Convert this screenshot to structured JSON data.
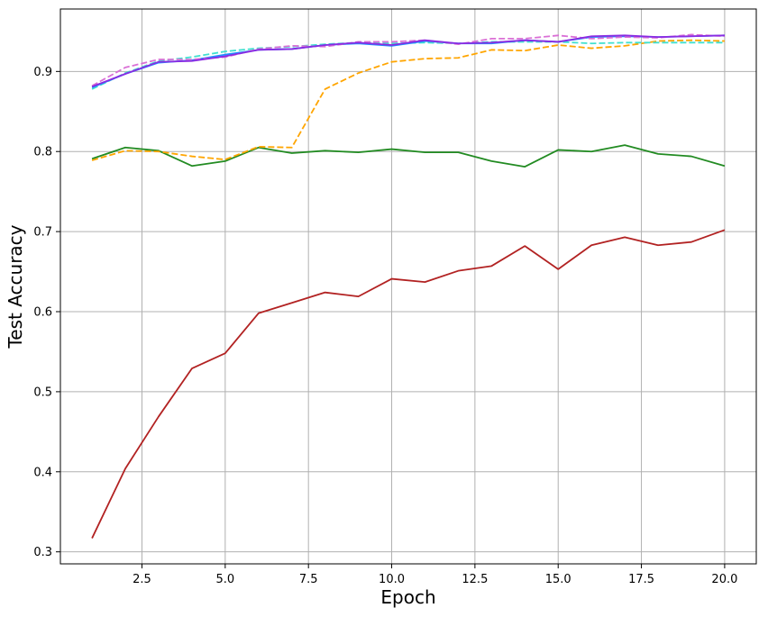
{
  "chart_data": {
    "type": "line",
    "title": "",
    "xlabel": "Epoch",
    "ylabel": "Test Accuracy",
    "xlim": [
      0.05,
      20.95
    ],
    "ylim": [
      0.285,
      0.978
    ],
    "grid": true,
    "xticks": [
      2.5,
      5.0,
      7.5,
      10.0,
      12.5,
      15.0,
      17.5,
      20.0
    ],
    "xtick_labels": [
      "2.5",
      "5.0",
      "7.5",
      "10.0",
      "12.5",
      "15.0",
      "17.5",
      "20.0"
    ],
    "yticks": [
      0.3,
      0.4,
      0.5,
      0.6,
      0.7,
      0.8,
      0.9
    ],
    "ytick_labels": [
      "0.3",
      "0.4",
      "0.5",
      "0.6",
      "0.7",
      "0.8",
      "0.9"
    ],
    "x": [
      1,
      2,
      3,
      4,
      5,
      6,
      7,
      8,
      9,
      10,
      11,
      12,
      13,
      14,
      15,
      16,
      17,
      18,
      19,
      20
    ],
    "series": [
      {
        "color": "#b22222",
        "dash": "solid",
        "values": [
          0.317,
          0.404,
          0.469,
          0.529,
          0.548,
          0.598,
          0.611,
          0.624,
          0.619,
          0.641,
          0.637,
          0.651,
          0.657,
          0.682,
          0.653,
          0.683,
          0.693,
          0.683,
          0.687,
          0.702
        ]
      },
      {
        "color": "#228b22",
        "dash": "solid",
        "values": [
          0.791,
          0.805,
          0.801,
          0.782,
          0.788,
          0.805,
          0.798,
          0.801,
          0.799,
          0.803,
          0.799,
          0.799,
          0.788,
          0.781,
          0.802,
          0.8,
          0.808,
          0.797,
          0.794,
          0.782
        ]
      },
      {
        "color": "#ffa500",
        "dash": "dashed",
        "values": [
          0.789,
          0.801,
          0.8,
          0.794,
          0.79,
          0.806,
          0.805,
          0.878,
          0.898,
          0.912,
          0.916,
          0.917,
          0.927,
          0.926,
          0.933,
          0.929,
          0.932,
          0.938,
          0.939,
          0.938
        ]
      },
      {
        "color": "#40e0d0",
        "dash": "dashed",
        "values": [
          0.878,
          0.898,
          0.913,
          0.918,
          0.925,
          0.929,
          0.931,
          0.934,
          0.936,
          0.935,
          0.936,
          0.935,
          0.937,
          0.937,
          0.937,
          0.935,
          0.936,
          0.936,
          0.936,
          0.936
        ]
      },
      {
        "color": "#1e90ff",
        "dash": "solid",
        "values": [
          0.88,
          0.897,
          0.911,
          0.914,
          0.921,
          0.927,
          0.928,
          0.933,
          0.935,
          0.932,
          0.938,
          0.935,
          0.935,
          0.939,
          0.937,
          0.943,
          0.944,
          0.943,
          0.944,
          0.945
        ]
      },
      {
        "color": "#da70d6",
        "dash": "dashed",
        "values": [
          0.882,
          0.905,
          0.915,
          0.915,
          0.918,
          0.928,
          0.932,
          0.931,
          0.937,
          0.937,
          0.939,
          0.934,
          0.941,
          0.941,
          0.945,
          0.941,
          0.943,
          0.942,
          0.946,
          0.944
        ]
      },
      {
        "color": "#8a2be2",
        "dash": "solid",
        "values": [
          0.881,
          0.897,
          0.912,
          0.913,
          0.919,
          0.927,
          0.928,
          0.933,
          0.936,
          0.933,
          0.939,
          0.935,
          0.936,
          0.939,
          0.937,
          0.944,
          0.945,
          0.943,
          0.944,
          0.945
        ]
      }
    ]
  }
}
